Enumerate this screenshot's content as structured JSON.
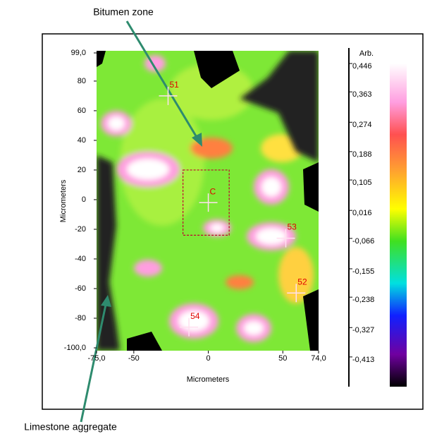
{
  "chart_data": {
    "type": "heatmap",
    "annotations": [
      "Bitumen zone",
      "Limestone aggregate"
    ],
    "xlabel": "Micrometers",
    "ylabel": "Micrometers",
    "xlim": [
      -75,
      74
    ],
    "xticks": [
      {
        "value": -75,
        "label": "-75,0"
      },
      -50,
      0,
      50,
      {
        "value": 74,
        "label": "74,0"
      }
    ],
    "ylim": [
      -100,
      99
    ],
    "yticks": [
      {
        "value": 99,
        "label": "99,0"
      },
      80,
      60,
      40,
      20,
      0,
      -20,
      -40,
      -60,
      -80,
      {
        "value": -100,
        "label": "-100,0"
      }
    ],
    "colorbar": {
      "label": "Arb.",
      "lim": [
        -0.5,
        0.446
      ],
      "ticks": [
        {
          "value": 0.446,
          "label": "0,446"
        },
        {
          "value": 0.363,
          "label": "0,363"
        },
        {
          "value": 0.274,
          "label": "0,274"
        },
        {
          "value": 0.188,
          "label": "0,188"
        },
        {
          "value": 0.105,
          "label": "0,105"
        },
        {
          "value": 0.016,
          "label": "0,016"
        },
        {
          "value": -0.066,
          "label": "-0,066"
        },
        {
          "value": -0.155,
          "label": "-0,155"
        },
        {
          "value": -0.238,
          "label": "-0,238"
        },
        {
          "value": -0.327,
          "label": "-0,327"
        },
        {
          "value": -0.413,
          "label": "-0,413"
        }
      ]
    },
    "markers": [
      {
        "label": "51",
        "x": -27,
        "y": 70
      },
      {
        "label": "C",
        "x": 0,
        "y": -2
      },
      {
        "label": "53",
        "x": 52,
        "y": -26
      },
      {
        "label": "52",
        "x": 59,
        "y": -63
      },
      {
        "label": "54",
        "x": -13,
        "y": -86
      }
    ],
    "region": {
      "xlim": [
        -17,
        14
      ],
      "ylim": [
        -24,
        20
      ]
    }
  }
}
